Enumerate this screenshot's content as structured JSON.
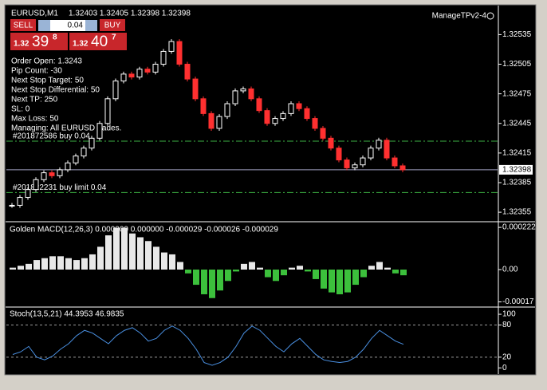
{
  "header": {
    "symbol": "EURUSD,M1",
    "quote": "1.32403 1.32405 1.32398 1.32398",
    "expert": "ManageTPv2-4"
  },
  "trade_panel": {
    "sell": "SELL",
    "buy": "BUY",
    "lot": "0.04",
    "sell_big": "1.32",
    "sell_pips": "39",
    "sell_point": "8",
    "buy_big": "1.32",
    "buy_pips": "40",
    "buy_point": "7"
  },
  "info_lines": [
    "Order Open: 1.3243",
    "Pip Count: -30",
    "Next Stop Target: 50",
    "Next Stop Differential: 50",
    "Next TP: 250",
    "SL: 0",
    "Max Loss: 50",
    "Managing: All EURUSD trades."
  ],
  "orders": [
    {
      "label": "#201872586 buy 0.04",
      "price": 1.32427
    },
    {
      "label": "#201822231 buy limit 0.04",
      "price": 1.32375
    }
  ],
  "chart_data": [
    {
      "type": "candlestick",
      "current_price": {
        "value": 1.32398,
        "label": "1.32398"
      },
      "ylim": [
        1.32347,
        1.32562
      ],
      "yticks": [
        1.32535,
        1.32505,
        1.32475,
        1.32445,
        1.32415,
        1.32385,
        1.32355
      ],
      "up_color": "#ffffff",
      "down_color": "#ff3030",
      "values": [
        1.32362,
        1.3237,
        1.32378,
        1.32388,
        1.32395,
        1.32392,
        1.32398,
        1.32405,
        1.32412,
        1.3242,
        1.3243,
        1.32445,
        1.3247,
        1.32488,
        1.32495,
        1.32492,
        1.325,
        1.32497,
        1.32505,
        1.32518,
        1.32528,
        1.32505,
        1.3249,
        1.3247,
        1.32455,
        1.3244,
        1.32452,
        1.32465,
        1.32478,
        1.3248,
        1.3247,
        1.32458,
        1.32445,
        1.3245,
        1.32455,
        1.32465,
        1.3246,
        1.3245,
        1.3244,
        1.3243,
        1.3242,
        1.32408,
        1.324,
        1.32403,
        1.3241,
        1.3242,
        1.32428,
        1.3241,
        1.32402,
        1.32398
      ]
    },
    {
      "type": "bar",
      "title": "Golden MACD(12,26,3) 0.000000 0.000000 -0.000029 -0.000026 -0.000029",
      "ylim": [
        -0.000193,
        0.000235
      ],
      "yticks": [
        {
          "value": 0.000222,
          "label": "0.000222"
        },
        {
          "value": 0,
          "label": "0.00"
        },
        {
          "value": -0.00017,
          "label": "-0.00017"
        }
      ],
      "up_color": "#e8e8e8",
      "down_color": "#3cc03c",
      "values": [
        1e-05,
        2e-05,
        3e-05,
        5e-05,
        6e-05,
        7e-05,
        7e-05,
        6e-05,
        5e-05,
        6e-05,
        8e-05,
        0.00012,
        0.00018,
        0.00022,
        0.00022,
        0.00019,
        0.00017,
        0.00015,
        0.00012,
        9e-05,
        8e-05,
        4e-05,
        -2e-05,
        -8e-05,
        -0.00013,
        -0.00015,
        -0.00011,
        -6e-05,
        -1e-05,
        3e-05,
        4e-05,
        1e-05,
        -4e-05,
        -6e-05,
        -3e-05,
        1e-05,
        2e-05,
        -1e-05,
        -5e-05,
        -0.0001,
        -0.00012,
        -0.00013,
        -0.00012,
        -8e-05,
        -4e-05,
        2e-05,
        4e-05,
        1e-05,
        -2e-05,
        -3e-05
      ]
    },
    {
      "type": "line",
      "title": "Stoch(13,5,21) 44.3953 46.9835",
      "ylim": [
        -10,
        109
      ],
      "yticks": [
        100,
        80,
        20,
        0
      ],
      "levels": [
        80,
        20
      ],
      "color": "#4a90e2",
      "values": [
        25,
        30,
        40,
        20,
        15,
        22,
        35,
        45,
        60,
        70,
        65,
        55,
        45,
        60,
        70,
        75,
        65,
        50,
        55,
        70,
        78,
        70,
        55,
        35,
        10,
        5,
        10,
        20,
        40,
        65,
        78,
        70,
        55,
        40,
        30,
        45,
        55,
        40,
        25,
        15,
        12,
        10,
        12,
        20,
        35,
        55,
        70,
        60,
        50,
        44
      ]
    }
  ]
}
